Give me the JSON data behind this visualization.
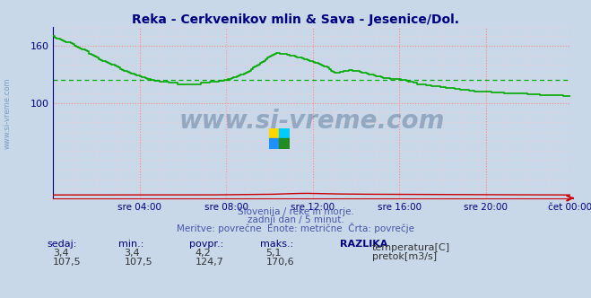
{
  "title": "Reka - Cerkvenikov mlin & Sava - Jesenice/Dol.",
  "title_color": "#000080",
  "bg_color": "#c8d8e8",
  "plot_bg_color": "#c8d8e8",
  "grid_color_major": "#ff8888",
  "grid_color_minor": "#ffcccc",
  "tick_label_color": "#000080",
  "xaxis_color": "#cc0000",
  "yaxis_color": "#000080",
  "xtick_labels": [
    "sre 04:00",
    "sre 08:00",
    "sre 12:00",
    "sre 16:00",
    "sre 20:00",
    "čet 00:00"
  ],
  "ytick_positions": [
    100,
    160
  ],
  "ytick_labels": [
    "100",
    "160"
  ],
  "ylim": [
    0,
    180
  ],
  "subtitle1": "Slovenija / reke in morje.",
  "subtitle2": "zadnji dan / 5 minut.",
  "subtitle3": "Meritve: povrečne  Enote: metrične  Črta: povrečje",
  "subtitle_color": "#4455aa",
  "watermark": "www.si-vreme.com",
  "watermark_color": "#1a3a6a",
  "temp_color": "#cc0000",
  "flow_color": "#00aa00",
  "avg_flow_color": "#00aa00",
  "avg_flow_value": 124.7,
  "legend_items": [
    {
      "label": "temperatura[C]",
      "color": "#cc0000"
    },
    {
      "label": "pretok[m3/s]",
      "color": "#00aa00"
    }
  ],
  "table_headers": [
    "sedaj:",
    "min.:",
    "povpr.:",
    "maks.:",
    "RAZLIKA"
  ],
  "table_row1": [
    "3,4",
    "3,4",
    "4,2",
    "5,1"
  ],
  "table_row2": [
    "107,5",
    "107,5",
    "124,7",
    "170,6"
  ],
  "header_color": "#000080",
  "value_color": "#333333",
  "logo_colors": [
    "#FFD700",
    "#00CCFF",
    "#1E90FF",
    "#228B22"
  ]
}
